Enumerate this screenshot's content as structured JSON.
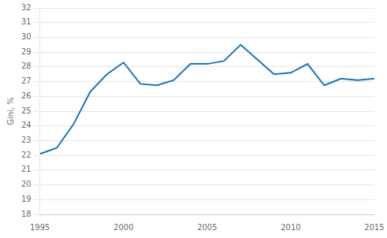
{
  "chart_data": {
    "type": "line",
    "x": [
      1995,
      1996,
      1997,
      1998,
      1999,
      2000,
      2001,
      2002,
      2003,
      2004,
      2005,
      2006,
      2007,
      2008,
      2009,
      2010,
      2011,
      2012,
      2013,
      2014,
      2015
    ],
    "values": [
      22.1,
      22.5,
      24.1,
      26.3,
      27.5,
      28.3,
      26.85,
      26.75,
      27.1,
      28.2,
      28.2,
      28.4,
      29.5,
      28.5,
      27.5,
      27.6,
      28.2,
      26.75,
      27.2,
      27.1,
      27.2
    ],
    "color": "#1a74b8",
    "xlim": [
      1995,
      2015
    ],
    "xticks": [
      1995,
      2000,
      2005,
      2010,
      2015
    ],
    "ylim": [
      18,
      32
    ],
    "yticks": [
      18,
      19,
      20,
      21,
      22,
      23,
      24,
      25,
      26,
      27,
      28,
      29,
      30,
      31,
      32
    ],
    "y_label": "Gini, %",
    "grid": "y"
  }
}
